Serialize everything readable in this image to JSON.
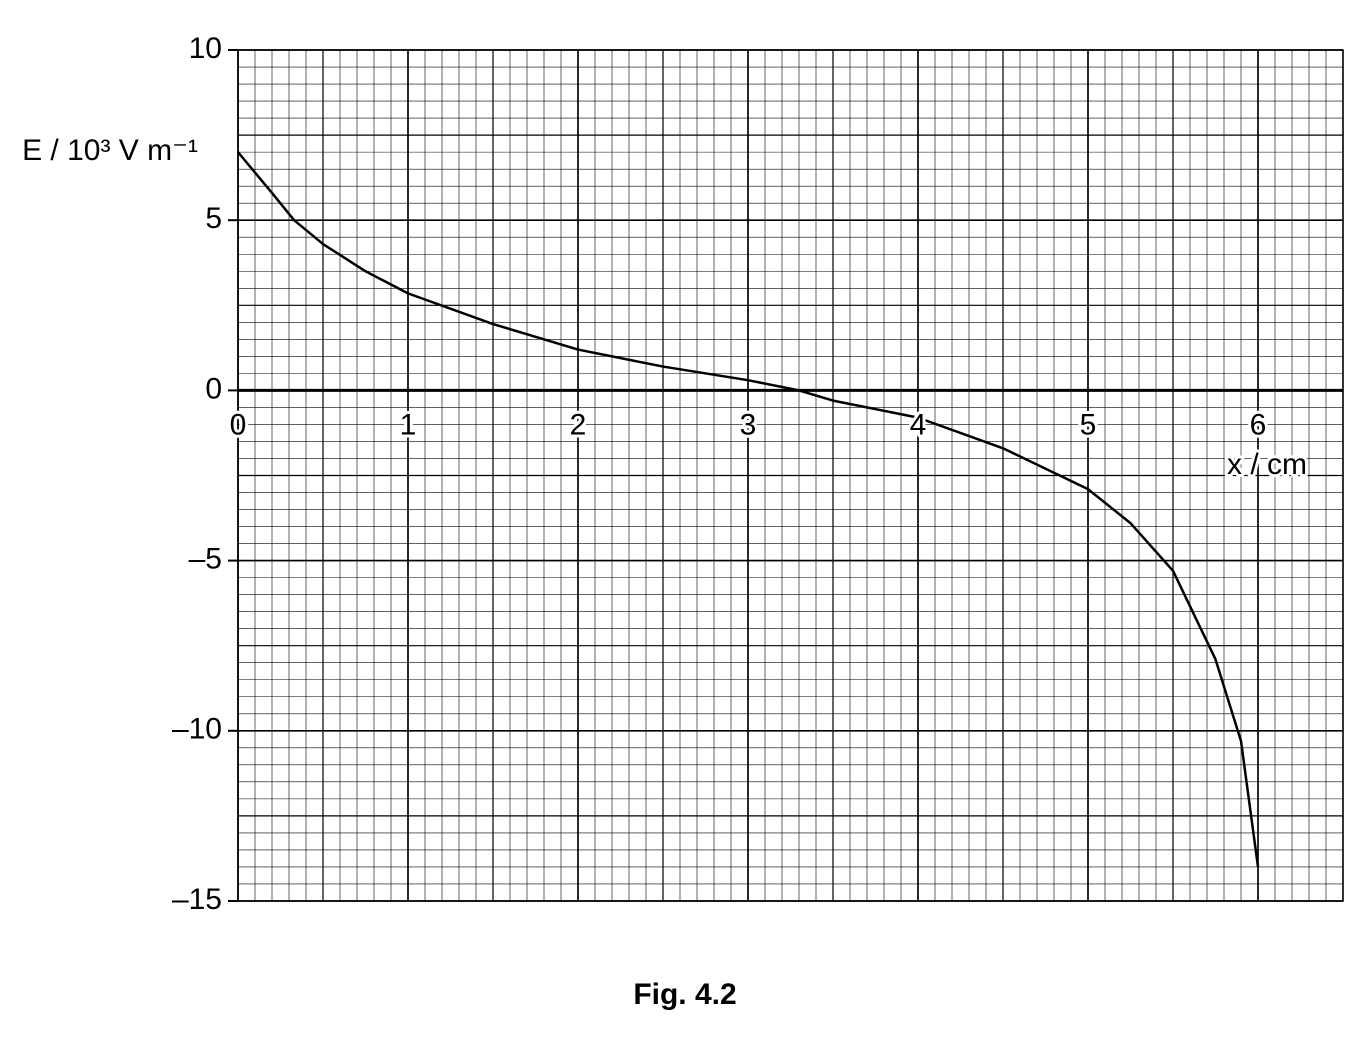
{
  "chart_data": {
    "type": "line",
    "y_label": "E / 10³ V m⁻¹",
    "x_label": "x / cm",
    "caption": "Fig. 4.2",
    "x": [
      0,
      0.1,
      0.2,
      0.33,
      0.5,
      0.75,
      1,
      1.5,
      2,
      2.5,
      3,
      3.3,
      3.5,
      4,
      4.5,
      5,
      5.25,
      5.5,
      5.75,
      5.9,
      6
    ],
    "series": [
      {
        "name": "E",
        "color": "#000000",
        "values": [
          7,
          6.4,
          5.8,
          5.0,
          4.3,
          3.5,
          2.85,
          1.95,
          1.2,
          0.7,
          0.3,
          0,
          -0.3,
          -0.8,
          -1.7,
          -2.9,
          -3.9,
          -5.3,
          -7.9,
          -10.3,
          -14
        ]
      }
    ],
    "xlim": [
      0,
      6.5
    ],
    "ylim": [
      -15,
      10
    ],
    "xticks": [
      0,
      1,
      2,
      3,
      4,
      5,
      6
    ],
    "yticks": [
      10,
      5,
      0,
      {
        "value": -5,
        "label": "–5"
      },
      {
        "value": -10,
        "label": "–10"
      },
      {
        "value": -15,
        "label": "–15"
      }
    ],
    "grid": true
  }
}
